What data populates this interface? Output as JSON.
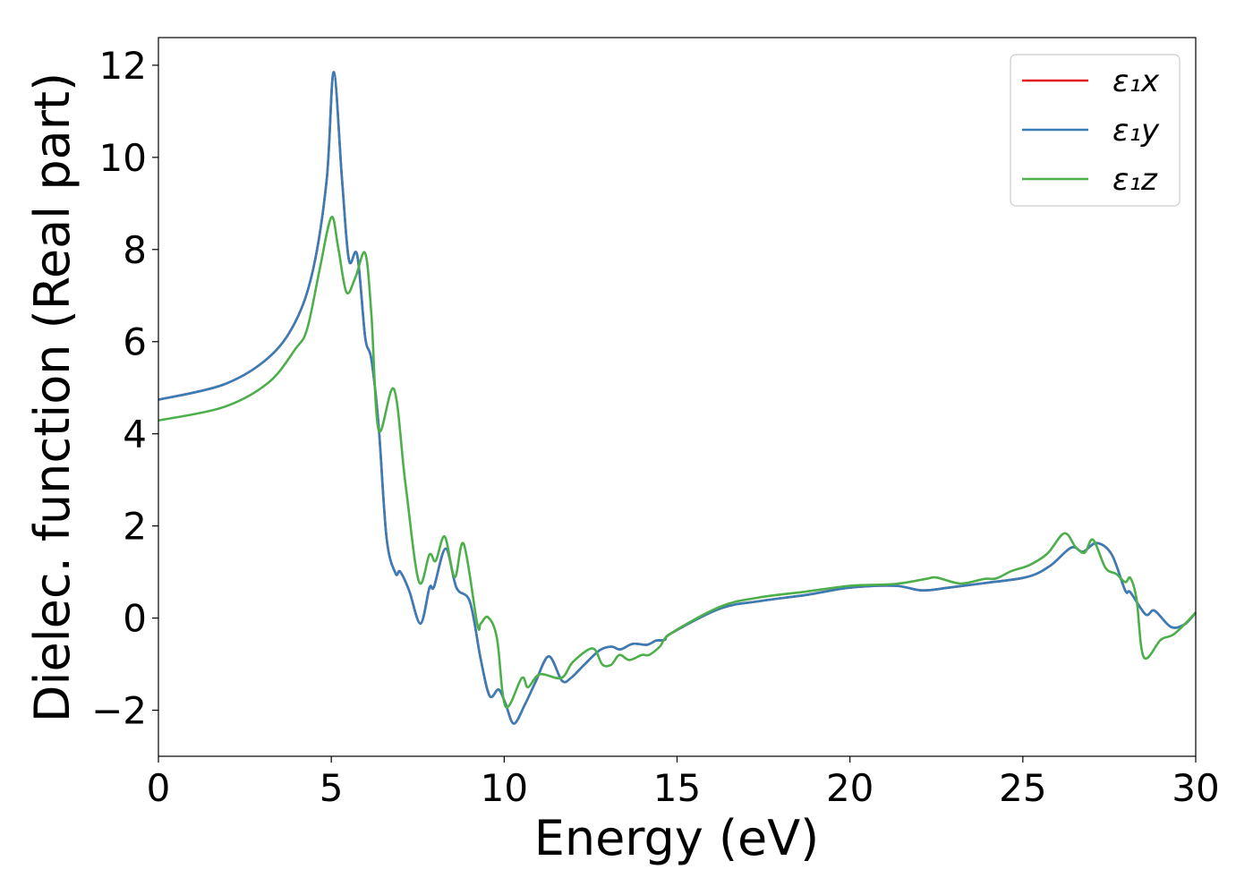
{
  "chart_data": {
    "type": "line",
    "title": "",
    "xlabel": "Energy (eV)",
    "ylabel": "Dielec. function (Real part)",
    "xlim": [
      0,
      30
    ],
    "ylim": [
      -3,
      12.6
    ],
    "xticks": [
      "0",
      "5",
      "10",
      "15",
      "20",
      "25",
      "30"
    ],
    "yticks": [
      "−2",
      "0",
      "2",
      "4",
      "6",
      "8",
      "10",
      "12"
    ],
    "xtick_values": [
      0,
      5,
      10,
      15,
      20,
      25,
      30
    ],
    "ytick_values": [
      -2,
      0,
      2,
      4,
      6,
      8,
      10,
      12
    ],
    "grid": false,
    "legend_position": "top-right",
    "series": [
      {
        "name": "ε₁x",
        "color": "#e41a1c",
        "x": [
          0,
          1.89,
          3.18,
          3.96,
          4.48,
          4.87,
          5.07,
          5.31,
          5.51,
          5.75,
          5.98,
          6.16,
          6.37,
          6.6,
          6.86,
          6.99,
          7.25,
          7.58,
          7.84,
          7.97,
          8.31,
          8.62,
          9.01,
          9.32,
          9.58,
          9.84,
          10.04,
          10.28,
          10.61,
          10.9,
          11.29,
          11.67,
          11.93,
          12.32,
          12.76,
          13.1,
          13.36,
          13.72,
          14.13,
          14.39,
          14.65,
          14.83,
          16.26,
          17.42,
          18.72,
          20.0,
          21.3,
          22.08,
          22.86,
          23.89,
          25.11,
          25.78,
          26.4,
          26.74,
          27.13,
          27.57,
          27.96,
          28.11,
          28.55,
          28.81,
          29.28,
          29.67,
          30.0
        ],
        "y": [
          4.74,
          5.07,
          5.65,
          6.43,
          7.59,
          9.53,
          11.85,
          9.53,
          7.77,
          7.88,
          6.1,
          5.61,
          4.16,
          1.73,
          0.97,
          1.01,
          0.6,
          -0.12,
          0.66,
          0.68,
          1.51,
          0.66,
          0.35,
          -0.89,
          -1.69,
          -1.55,
          -1.86,
          -2.29,
          -1.86,
          -1.4,
          -0.83,
          -1.36,
          -1.3,
          -1.01,
          -0.7,
          -0.62,
          -0.68,
          -0.56,
          -0.58,
          -0.49,
          -0.47,
          -0.33,
          0.21,
          0.37,
          0.5,
          0.66,
          0.7,
          0.6,
          0.66,
          0.76,
          0.89,
          1.13,
          1.53,
          1.44,
          1.63,
          1.38,
          0.6,
          0.56,
          0.08,
          0.16,
          -0.19,
          -0.14,
          0.12
        ]
      },
      {
        "name": "ε₁y",
        "color": "#377eb8",
        "x": [
          0,
          1.89,
          3.18,
          3.96,
          4.48,
          4.87,
          5.07,
          5.31,
          5.51,
          5.75,
          5.98,
          6.16,
          6.37,
          6.6,
          6.86,
          6.99,
          7.25,
          7.58,
          7.84,
          7.97,
          8.31,
          8.62,
          9.01,
          9.32,
          9.58,
          9.84,
          10.04,
          10.28,
          10.61,
          10.9,
          11.29,
          11.67,
          11.93,
          12.32,
          12.76,
          13.1,
          13.36,
          13.72,
          14.13,
          14.39,
          14.65,
          14.83,
          16.26,
          17.42,
          18.72,
          20.0,
          21.3,
          22.08,
          22.86,
          23.89,
          25.11,
          25.78,
          26.4,
          26.74,
          27.13,
          27.57,
          27.96,
          28.11,
          28.55,
          28.81,
          29.28,
          29.67,
          30.0
        ],
        "y": [
          4.74,
          5.07,
          5.65,
          6.43,
          7.59,
          9.53,
          11.85,
          9.53,
          7.77,
          7.88,
          6.1,
          5.61,
          4.16,
          1.73,
          0.97,
          1.01,
          0.6,
          -0.12,
          0.66,
          0.68,
          1.51,
          0.66,
          0.35,
          -0.89,
          -1.69,
          -1.55,
          -1.86,
          -2.29,
          -1.86,
          -1.4,
          -0.83,
          -1.36,
          -1.3,
          -1.01,
          -0.7,
          -0.62,
          -0.68,
          -0.56,
          -0.58,
          -0.49,
          -0.47,
          -0.33,
          0.21,
          0.37,
          0.5,
          0.66,
          0.7,
          0.6,
          0.66,
          0.76,
          0.89,
          1.13,
          1.53,
          1.44,
          1.63,
          1.38,
          0.6,
          0.56,
          0.08,
          0.16,
          -0.19,
          -0.14,
          0.12
        ]
      },
      {
        "name": "ε₁z",
        "color": "#4daf4a",
        "x": [
          0,
          1.89,
          3.18,
          3.96,
          4.3,
          4.66,
          5.0,
          5.2,
          5.44,
          5.7,
          5.98,
          6.16,
          6.37,
          6.81,
          7.14,
          7.53,
          7.84,
          8.02,
          8.28,
          8.57,
          8.83,
          9.22,
          9.32,
          9.53,
          9.79,
          10.04,
          10.51,
          10.69,
          11.03,
          11.65,
          11.99,
          12.56,
          12.84,
          13.1,
          13.33,
          13.62,
          13.98,
          14.19,
          14.5,
          14.83,
          16.26,
          17.4,
          18.7,
          20.0,
          21.3,
          22.2,
          22.5,
          23.2,
          23.89,
          24.23,
          24.67,
          25.19,
          25.71,
          26.2,
          26.53,
          26.79,
          27.03,
          27.39,
          27.7,
          27.96,
          28.11,
          28.29,
          28.5,
          28.99,
          29.33,
          29.67,
          30.0
        ],
        "y": [
          4.29,
          4.58,
          5.11,
          5.84,
          6.27,
          7.55,
          8.7,
          8.04,
          7.07,
          7.4,
          7.92,
          6.58,
          4.08,
          4.97,
          2.95,
          0.8,
          1.38,
          1.24,
          1.77,
          0.89,
          1.61,
          -0.12,
          -0.12,
          0.02,
          -0.43,
          -1.92,
          -1.3,
          -1.5,
          -1.22,
          -1.3,
          -0.95,
          -0.66,
          -1.01,
          -1.01,
          -0.8,
          -0.91,
          -0.8,
          -0.8,
          -0.62,
          -0.33,
          0.25,
          0.45,
          0.57,
          0.7,
          0.74,
          0.85,
          0.88,
          0.75,
          0.85,
          0.86,
          1.02,
          1.15,
          1.4,
          1.84,
          1.54,
          1.42,
          1.7,
          1.09,
          0.96,
          0.78,
          0.87,
          0.41,
          -0.85,
          -0.47,
          -0.37,
          -0.14,
          0.12
        ]
      }
    ]
  }
}
